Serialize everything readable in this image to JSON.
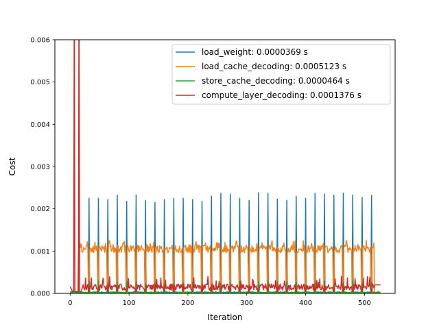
{
  "chart_data": {
    "type": "line",
    "title": "",
    "xlabel": "Iteration",
    "ylabel": "Cost",
    "xlim": [
      -26,
      552
    ],
    "ylim": [
      0,
      0.006
    ],
    "x_ticks": [
      0,
      100,
      200,
      300,
      400,
      500
    ],
    "x_tick_labels": [
      "0",
      "100",
      "200",
      "300",
      "400",
      "500"
    ],
    "y_ticks": [
      0,
      0.001,
      0.002,
      0.003,
      0.004,
      0.005,
      0.006
    ],
    "y_tick_labels": [
      "0.000",
      "0.001",
      "0.002",
      "0.003",
      "0.004",
      "0.005",
      "0.006"
    ],
    "legend_position": "top-right",
    "n_iterations": 528,
    "pattern": {
      "period": 16,
      "first_peak": 32,
      "peak_count": 31,
      "load_weight_peaks": [
        0.00225,
        0.00225,
        0.00222,
        0.00232,
        0.00218,
        0.00233,
        0.0022,
        0.00215,
        0.00222,
        0.00225,
        0.00225,
        0.00222,
        0.00218,
        0.0023,
        0.00237,
        0.00235,
        0.00225,
        0.0022,
        0.00238,
        0.00237,
        0.00223,
        0.0022,
        0.0023,
        0.00225,
        0.00237,
        0.00235,
        0.00232,
        0.00237,
        0.00233,
        0.00227,
        0.00232
      ],
      "compute_warmup_x": [
        7,
        15
      ],
      "compute_warmup_y": 0.0075
    },
    "series": [
      {
        "name": "load_weight: 0.0000369 s",
        "color": "#1f77b4",
        "baseline": 2e-05
      },
      {
        "name": "load_cache_decoding: 0.0005123 s",
        "color": "#ff7f0e",
        "plateau": 0.00105
      },
      {
        "name": "store_cache_decoding: 0.0000464 s",
        "color": "#2ca02c",
        "baseline": 1e-05
      },
      {
        "name": "compute_layer_decoding: 0.0001376 s",
        "color": "#d62728",
        "baseline": 0.00012
      }
    ]
  }
}
